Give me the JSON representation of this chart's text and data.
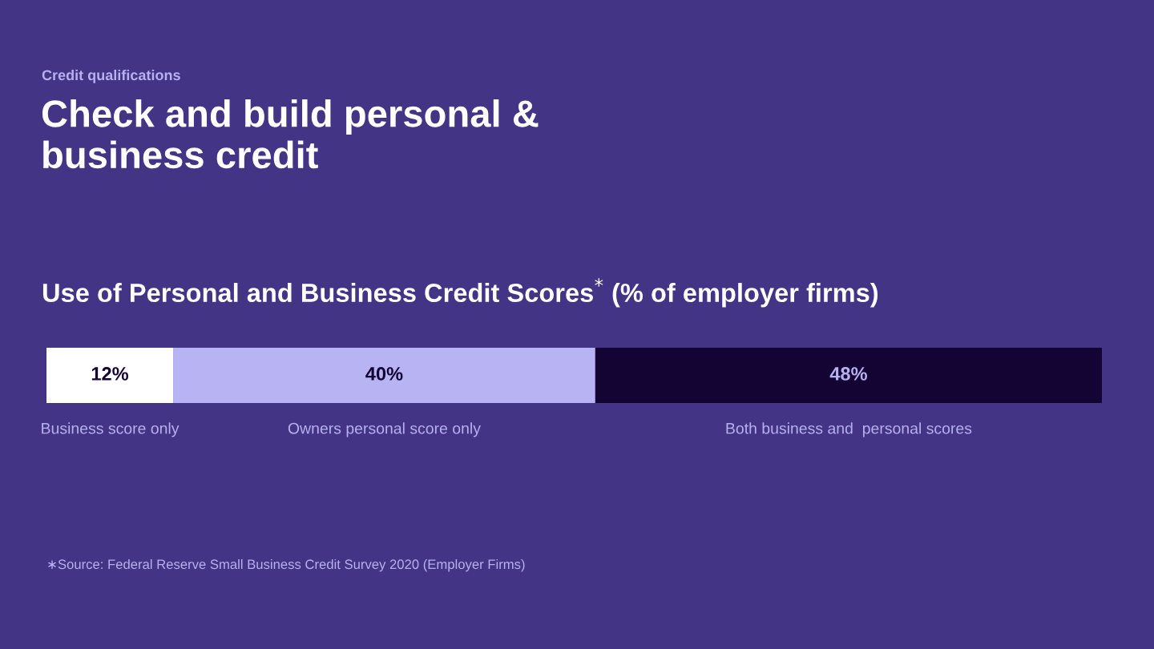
{
  "chart_data": {
    "type": "bar",
    "orientation": "horizontal",
    "stacked": true,
    "title": "Check and build personal & business credit",
    "subtitle": "Use of Personal and Business Credit Scores$^{*}$ (% of employer firms)",
    "annotations": [
      "Credit qualifications",
      "∗Source: Federal Reserve Small Business Credit Survey 2020 (Employer Firms)"
    ],
    "categories": [
      null
    ],
    "series": [
      {
        "name": "Business score only",
        "color": "#ffffff",
        "values": [
          12
        ],
        "value_labels": [
          "12%"
        ]
      },
      {
        "name": "Owners personal score only",
        "color": "#b8b3f2",
        "values": [
          40
        ],
        "value_labels": [
          "40%"
        ]
      },
      {
        "name": "Both business and  personal scores",
        "color": "#140433",
        "values": [
          48
        ],
        "value_labels": [
          "48%"
        ]
      }
    ],
    "xlim": [
      0,
      100
    ]
  }
}
